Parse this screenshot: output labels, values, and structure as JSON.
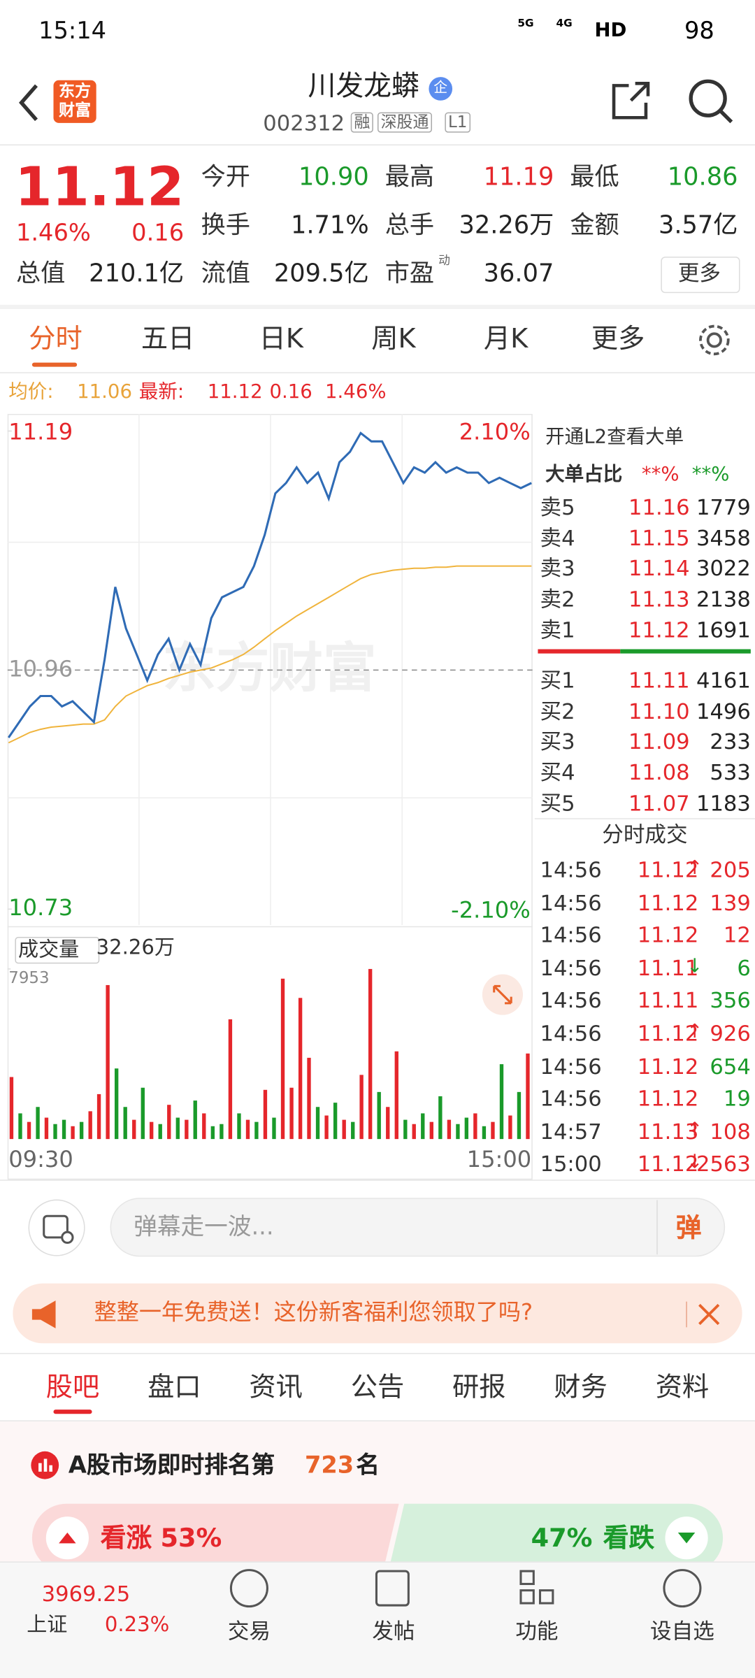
{
  "status_bar": {
    "time": "15:14",
    "network": [
      "5G",
      "4G"
    ],
    "hd": "HD",
    "battery": "98"
  },
  "header": {
    "logo": [
      "东方",
      "财富"
    ],
    "title": "川发龙蟒",
    "badge": "企",
    "code": "002312",
    "tags": [
      "融",
      "深股通",
      "L1"
    ]
  },
  "quote": {
    "price": "11.12",
    "change_pct": "1.46%",
    "change": "0.16",
    "stats": [
      {
        "label": "今开",
        "value": "10.90",
        "color": "#1a9a2a"
      },
      {
        "label": "最高",
        "value": "11.19",
        "color": "#e5262b"
      },
      {
        "label": "最低",
        "value": "10.86",
        "color": "#1a9a2a"
      },
      {
        "label": "换手",
        "value": "1.71%"
      },
      {
        "label": "总手",
        "value": "32.26万"
      },
      {
        "label": "金额",
        "value": "3.57亿"
      },
      {
        "label": "总值",
        "value": "210.1亿"
      },
      {
        "label": "流值",
        "value": "209.5亿"
      },
      {
        "label": "市盈",
        "value": "36.07"
      }
    ],
    "pe_tag": "动",
    "more": "更多"
  },
  "tabs": [
    "分时",
    "五日",
    "日K",
    "周K",
    "月K",
    "更多"
  ],
  "info_line": {
    "avg_label": "均价:",
    "avg": "11.06",
    "last_label": "最新:",
    "last": "11.12",
    "change": "0.16",
    "change_pct": "1.46%"
  },
  "price_chart": {
    "type": "line",
    "ylim": [
      10.73,
      11.19
    ],
    "yticks": [
      10.73,
      10.96,
      11.19
    ],
    "pct_labels": [
      "2.10%",
      "-2.10%"
    ],
    "watermark": "东方财富",
    "series": [
      {
        "color": "#2f6bb5",
        "values": [
          10.895,
          10.91,
          10.925,
          10.935,
          10.935,
          10.925,
          10.93,
          10.92,
          10.91,
          10.97,
          11.04,
          11.0,
          10.975,
          10.95,
          10.975,
          10.99,
          10.96,
          10.985,
          10.965,
          11.01,
          11.03,
          11.035,
          11.04,
          11.06,
          11.09,
          11.13,
          11.14,
          11.155,
          11.14,
          11.15,
          11.125,
          11.16,
          11.17,
          11.188,
          11.18,
          11.18,
          11.16,
          11.14,
          11.155,
          11.15,
          11.16,
          11.15,
          11.155,
          11.15,
          11.15,
          11.14,
          11.145,
          11.14,
          11.135,
          11.14
        ]
      },
      {
        "color": "#f0b43c",
        "values": [
          10.89,
          10.895,
          10.9,
          10.903,
          10.905,
          10.906,
          10.907,
          10.908,
          10.908,
          10.912,
          10.925,
          10.935,
          10.94,
          10.945,
          10.948,
          10.952,
          10.955,
          10.958,
          10.96,
          10.962,
          10.966,
          10.97,
          10.975,
          10.982,
          10.99,
          10.998,
          11.005,
          11.012,
          11.018,
          11.024,
          11.03,
          11.036,
          11.042,
          11.048,
          11.052,
          11.054,
          11.056,
          11.057,
          11.058,
          11.058,
          11.059,
          11.059,
          11.06,
          11.06,
          11.06,
          11.06,
          11.06,
          11.06,
          11.06,
          11.06
        ]
      }
    ]
  },
  "volume_chart": {
    "type": "bar",
    "label": "成交量",
    "total": "32.26万",
    "ylim": [
      0,
      7953
    ],
    "yticks": [
      7953
    ],
    "x_labels": [
      "09:30",
      "15:00"
    ],
    "values": [
      2900,
      1200,
      800,
      1500,
      1000,
      700,
      900,
      600,
      800,
      1300,
      2100,
      7200,
      3300,
      1500,
      900,
      2400,
      800,
      700,
      1600,
      1000,
      900,
      1800,
      1200,
      600,
      700,
      5600,
      1200,
      900,
      800,
      2300,
      1000,
      7500,
      2400,
      6600,
      3800,
      1500,
      1100,
      1700,
      900,
      800,
      3000,
      7953,
      2200,
      1500,
      4100,
      900,
      700,
      1200,
      800,
      2000,
      900,
      700,
      1000,
      1200,
      600,
      800,
      3500,
      1100,
      2200,
      4000
    ],
    "colors": [
      "#e5262b",
      "#1a9a2a",
      "#e5262b",
      "#1a9a2a",
      "#e5262b",
      "#1a9a2a",
      "#1a9a2a",
      "#e5262b",
      "#1a9a2a",
      "#e5262b",
      "#e5262b",
      "#e5262b",
      "#1a9a2a",
      "#1a9a2a",
      "#e5262b",
      "#1a9a2a",
      "#e5262b",
      "#1a9a2a",
      "#e5262b",
      "#1a9a2a",
      "#e5262b",
      "#1a9a2a",
      "#e5262b",
      "#1a9a2a",
      "#1a9a2a",
      "#e5262b",
      "#1a9a2a",
      "#e5262b",
      "#1a9a2a",
      "#e5262b",
      "#1a9a2a",
      "#e5262b",
      "#e5262b",
      "#e5262b",
      "#e5262b",
      "#1a9a2a",
      "#e5262b",
      "#1a9a2a",
      "#e5262b",
      "#1a9a2a",
      "#e5262b",
      "#e5262b",
      "#1a9a2a",
      "#e5262b",
      "#e5262b",
      "#1a9a2a",
      "#e5262b",
      "#1a9a2a",
      "#e5262b",
      "#1a9a2a",
      "#e5262b",
      "#1a9a2a",
      "#1a9a2a",
      "#e5262b",
      "#1a9a2a",
      "#e5262b",
      "#1a9a2a",
      "#e5262b",
      "#1a9a2a",
      "#e5262b"
    ]
  },
  "order_book": {
    "promo": "开通L2查看大单",
    "big_label": "大单占比",
    "big_buy": "**%",
    "big_sell": "**%",
    "asks": [
      {
        "label": "卖5",
        "price": "11.16",
        "volume": "1779"
      },
      {
        "label": "卖4",
        "price": "11.15",
        "volume": "3458"
      },
      {
        "label": "卖3",
        "price": "11.14",
        "volume": "3022"
      },
      {
        "label": "卖2",
        "price": "11.13",
        "volume": "2138"
      },
      {
        "label": "卖1",
        "price": "11.12",
        "volume": "1691"
      }
    ],
    "bids": [
      {
        "label": "买1",
        "price": "11.11",
        "volume": "4161"
      },
      {
        "label": "买2",
        "price": "11.10",
        "volume": "1496"
      },
      {
        "label": "买3",
        "price": "11.09",
        "volume": "233"
      },
      {
        "label": "买4",
        "price": "11.08",
        "volume": "533"
      },
      {
        "label": "买5",
        "price": "11.07",
        "volume": "1183"
      }
    ]
  },
  "trades": {
    "title": "分时成交",
    "rows": [
      {
        "time": "14:56",
        "price": "11.12",
        "arrow": "↑",
        "volume": "205",
        "price_color": "#e5262b",
        "volume_color": "#e5262b"
      },
      {
        "time": "14:56",
        "price": "11.12",
        "volume": "139",
        "price_color": "#e5262b",
        "volume_color": "#e5262b"
      },
      {
        "time": "14:56",
        "price": "11.12",
        "volume": "12",
        "price_color": "#e5262b",
        "volume_color": "#e5262b"
      },
      {
        "time": "14:56",
        "price": "11.11",
        "arrow": "↓",
        "volume": "6",
        "price_color": "#e5262b",
        "volume_color": "#1a9a2a"
      },
      {
        "time": "14:56",
        "price": "11.11",
        "volume": "356",
        "price_color": "#e5262b",
        "volume_color": "#1a9a2a"
      },
      {
        "time": "14:56",
        "price": "11.12",
        "arrow": "↑",
        "volume": "926",
        "price_color": "#e5262b",
        "volume_color": "#e5262b"
      },
      {
        "time": "14:56",
        "price": "11.12",
        "volume": "654",
        "price_color": "#e5262b",
        "volume_color": "#1a9a2a"
      },
      {
        "time": "14:56",
        "price": "11.12",
        "volume": "19",
        "price_color": "#e5262b",
        "volume_color": "#1a9a2a"
      },
      {
        "time": "14:57",
        "price": "11.13",
        "arrow": "↑",
        "volume": "108",
        "price_color": "#e5262b",
        "volume_color": "#e5262b"
      },
      {
        "time": "15:00",
        "price": "11.12",
        "arrow": "↓",
        "volume": "2563",
        "price_color": "#e5262b",
        "volume_color": "#e5262b"
      }
    ]
  },
  "comment": {
    "placeholder": "弹幕走一波...",
    "button": "弹"
  },
  "banner": {
    "text": "整整一年免费送！这份新客福利您领取了吗?"
  },
  "section_tabs": [
    "股吧",
    "盘口",
    "资讯",
    "公告",
    "研报",
    "财务",
    "资料"
  ],
  "ranking": {
    "prefix": "A股市场即时排名第",
    "rank": "723",
    "suffix": "名"
  },
  "sentiment": {
    "bull_label": "看涨",
    "bull_pct": "53%",
    "bear_pct": "47%",
    "bear_label": "看跌"
  },
  "bottom_nav": {
    "index_value": "3969.25",
    "index_name": "上证",
    "index_change": "0.23%",
    "items": [
      "交易",
      "发帖",
      "功能",
      "设自选"
    ]
  }
}
